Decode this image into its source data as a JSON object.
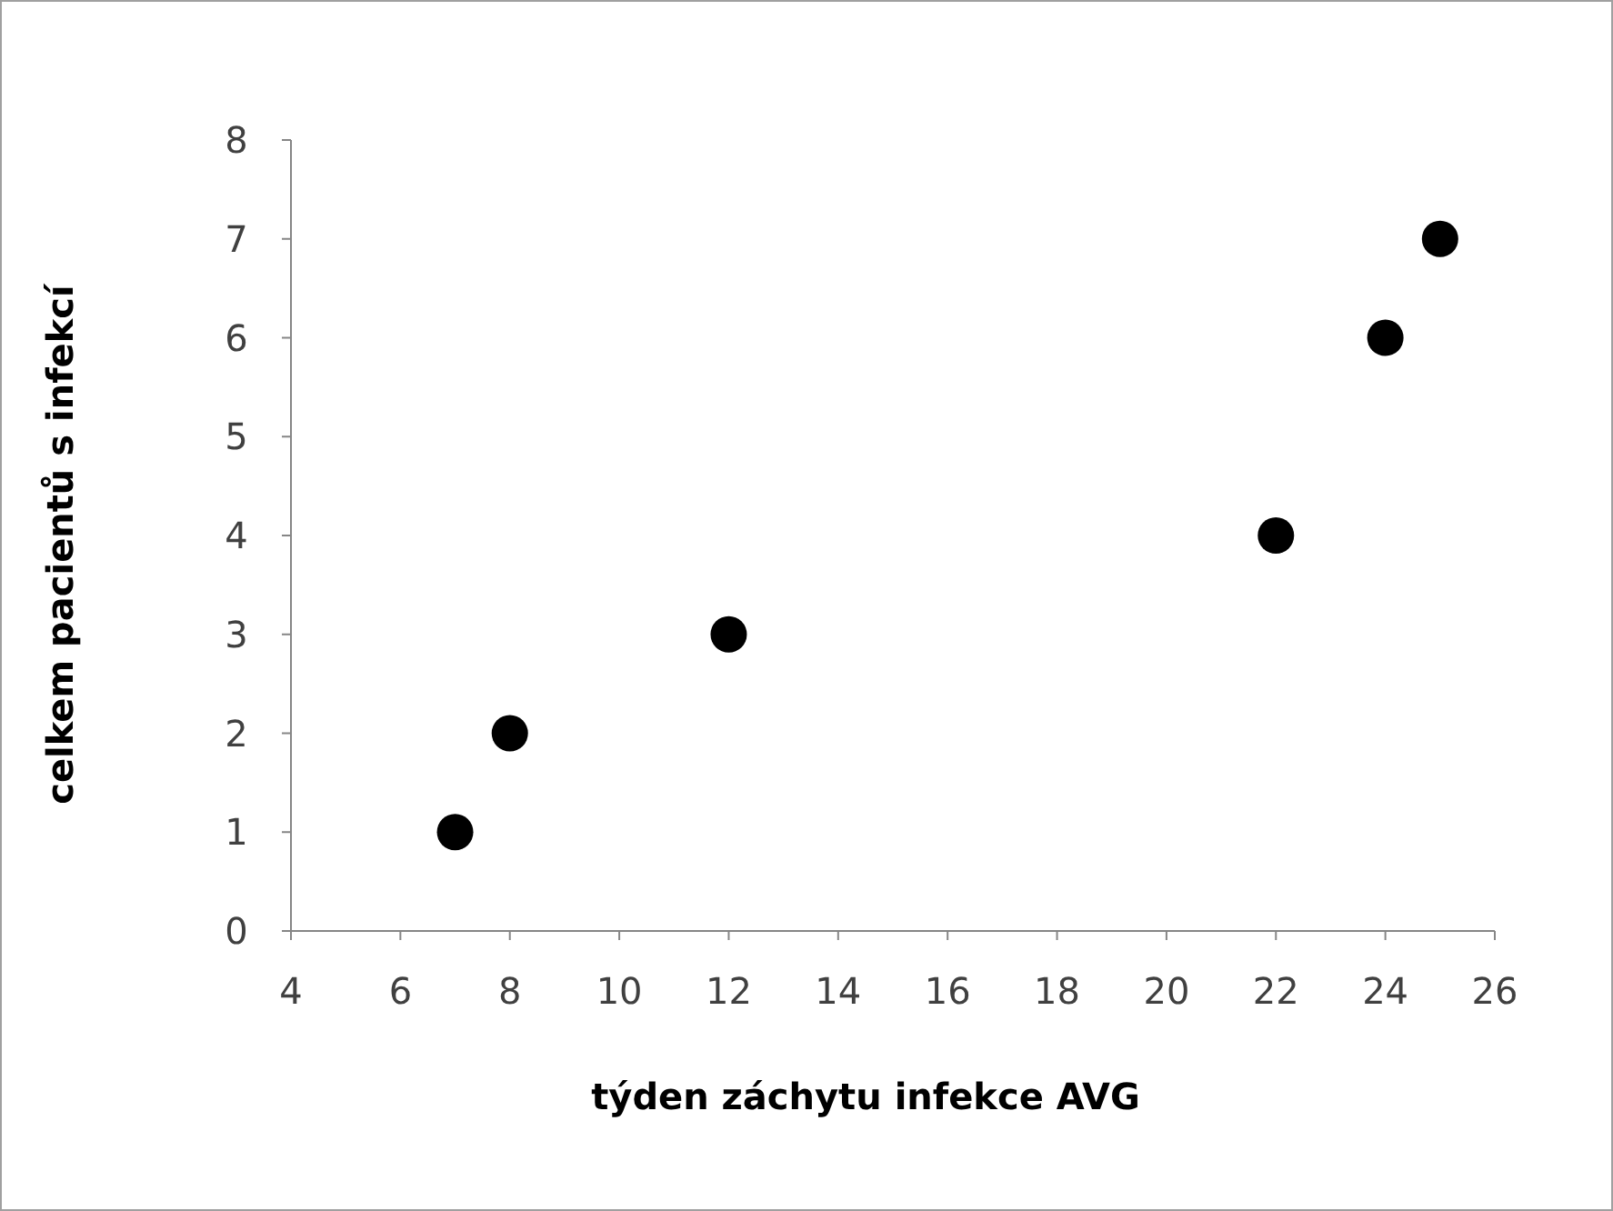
{
  "chart_data": {
    "type": "scatter",
    "xlabel": "týden záchytu infekce AVG",
    "ylabel": "celkem pacientů s infekcí",
    "x": [
      7,
      8,
      12,
      22,
      24,
      25
    ],
    "values": [
      1,
      2,
      3,
      4,
      6,
      7
    ],
    "color": "#000000",
    "marker": "circle",
    "grid": false,
    "xlim": [
      4,
      26
    ],
    "xticks": [
      4,
      6,
      8,
      10,
      12,
      14,
      16,
      18,
      20,
      22,
      24,
      26
    ],
    "ylim": [
      0,
      8
    ],
    "yticks": [
      0,
      1,
      2,
      3,
      4,
      5,
      6,
      7,
      8
    ]
  }
}
